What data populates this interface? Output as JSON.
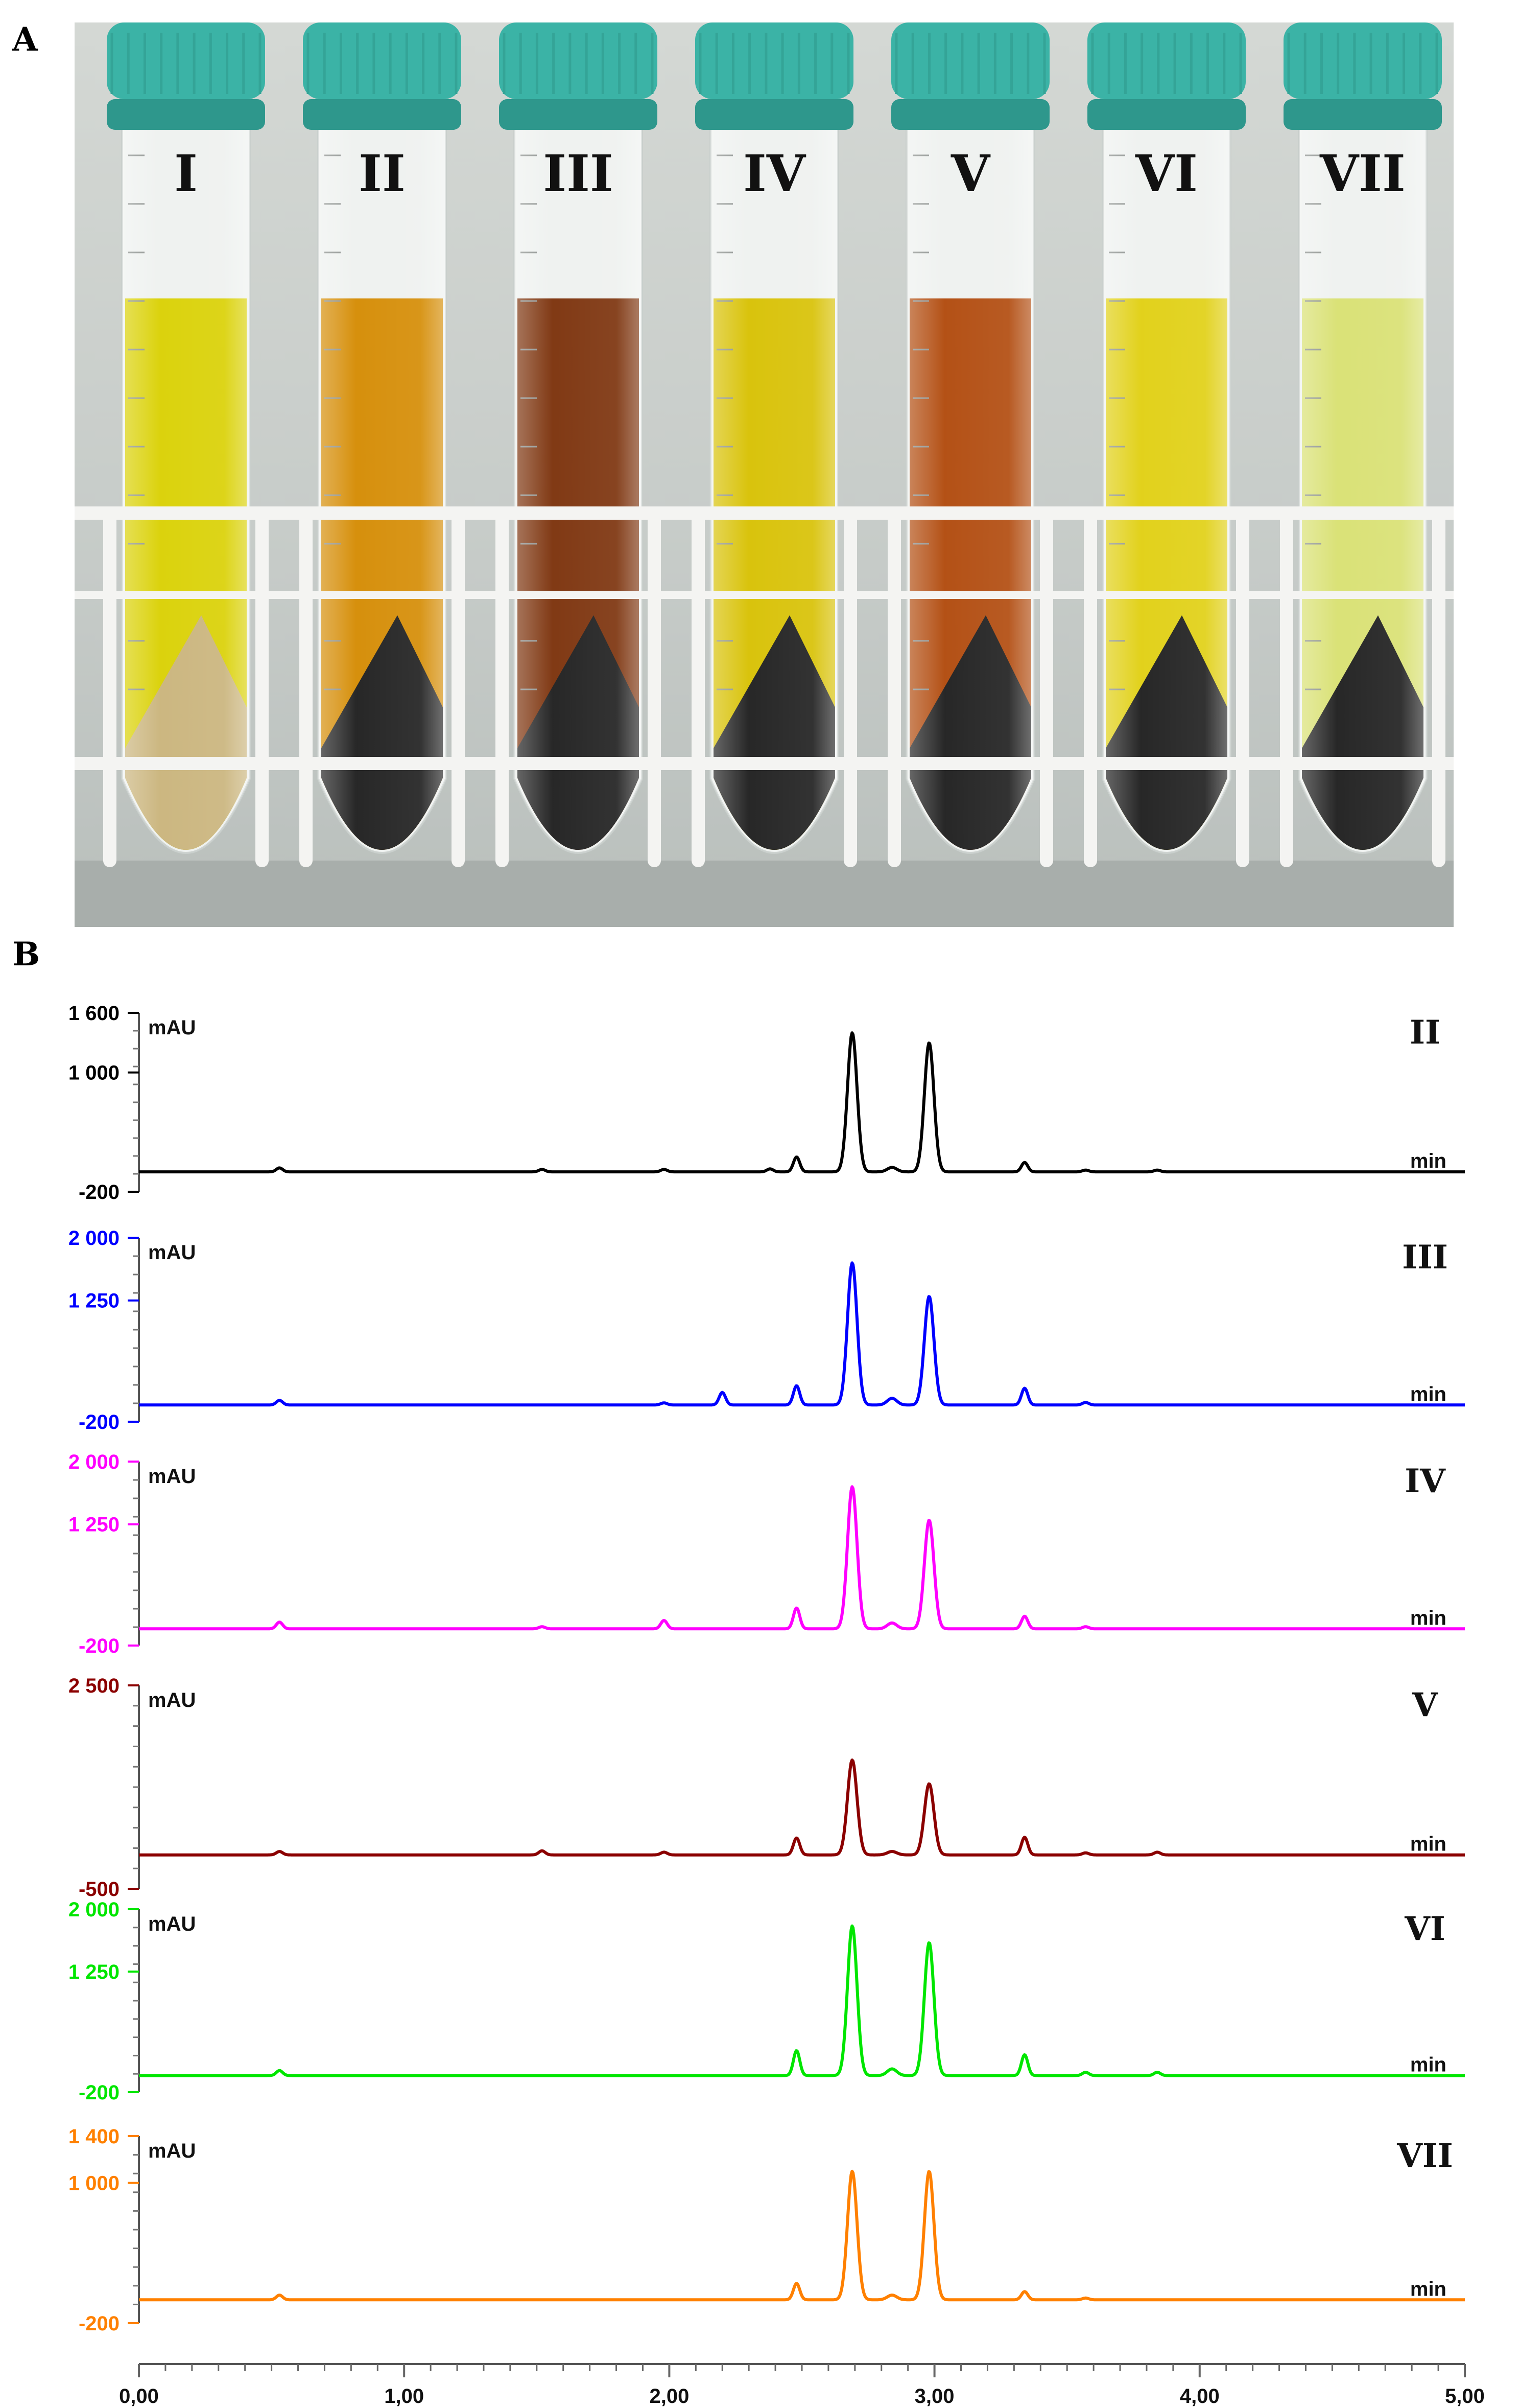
{
  "panel_a": {
    "label": "A",
    "tubes": [
      {
        "label": "I",
        "liquid_color": "#d9d000",
        "pellet": "sand"
      },
      {
        "label": "II",
        "liquid_color": "#d48a00",
        "pellet": "black"
      },
      {
        "label": "III",
        "liquid_color": "#7a2f08",
        "pellet": "black"
      },
      {
        "label": "IV",
        "liquid_color": "#d7c000",
        "pellet": "black"
      },
      {
        "label": "V",
        "liquid_color": "#b0480a",
        "pellet": "black"
      },
      {
        "label": "VI",
        "liquid_color": "#e0cf10",
        "pellet": "black"
      },
      {
        "label": "VII",
        "liquid_color": "#d8e070",
        "pellet": "black"
      }
    ],
    "cap_color": "#3bb3a6"
  },
  "panel_b": {
    "label": "B"
  },
  "chart_data": {
    "type": "line",
    "x_axis": {
      "range": [
        0,
        5
      ],
      "ticks": [
        0,
        1,
        2,
        3,
        4,
        5
      ],
      "tick_labels": [
        "0,00",
        "1,00",
        "2,00",
        "3,00",
        "4,00",
        "5,00"
      ],
      "unit_label": "min"
    },
    "y_unit": "mAU",
    "series": [
      {
        "name": "II",
        "color": "#000000",
        "ylim": [
          -200,
          1600
        ],
        "y_ticks": [
          -200,
          1000,
          1600
        ],
        "y_tick_labels": [
          "-200",
          "1 000",
          "1 600"
        ],
        "baseline": 0,
        "peaks": [
          [
            0.53,
            40
          ],
          [
            1.52,
            25
          ],
          [
            1.98,
            25
          ],
          [
            2.38,
            30
          ],
          [
            2.48,
            150
          ],
          [
            2.69,
            1400
          ],
          [
            2.84,
            45
          ],
          [
            2.98,
            1300
          ],
          [
            3.34,
            95
          ],
          [
            3.57,
            18
          ],
          [
            3.84,
            18
          ]
        ]
      },
      {
        "name": "III",
        "color": "#0000ff",
        "ylim": [
          -200,
          2000
        ],
        "y_ticks": [
          -200,
          1250,
          2000
        ],
        "y_tick_labels": [
          "-200",
          "1 250",
          "2 000"
        ],
        "baseline": 0,
        "peaks": [
          [
            0.53,
            55
          ],
          [
            1.98,
            25
          ],
          [
            2.2,
            150
          ],
          [
            2.48,
            230
          ],
          [
            2.69,
            1700
          ],
          [
            2.84,
            80
          ],
          [
            2.98,
            1300
          ],
          [
            3.34,
            200
          ],
          [
            3.57,
            30
          ]
        ]
      },
      {
        "name": "IV",
        "color": "#ff00ff",
        "ylim": [
          -200,
          2000
        ],
        "y_ticks": [
          -200,
          1250,
          2000
        ],
        "y_tick_labels": [
          "-200",
          "1 250",
          "2 000"
        ],
        "baseline": 0,
        "peaks": [
          [
            0.53,
            80
          ],
          [
            1.52,
            25
          ],
          [
            1.98,
            100
          ],
          [
            2.48,
            250
          ],
          [
            2.69,
            1700
          ],
          [
            2.84,
            70
          ],
          [
            2.98,
            1300
          ],
          [
            3.34,
            150
          ],
          [
            3.57,
            25
          ]
        ]
      },
      {
        "name": "V",
        "color": "#8b0000",
        "ylim": [
          -500,
          2500
        ],
        "y_ticks": [
          -500,
          2500
        ],
        "y_tick_labels": [
          "-500",
          "2 500"
        ],
        "baseline": 0,
        "peaks": [
          [
            0.53,
            50
          ],
          [
            1.52,
            60
          ],
          [
            1.98,
            40
          ],
          [
            2.48,
            250
          ],
          [
            2.69,
            1400
          ],
          [
            2.84,
            50
          ],
          [
            2.98,
            1050
          ],
          [
            3.34,
            260
          ],
          [
            3.57,
            30
          ],
          [
            3.84,
            40
          ]
        ]
      },
      {
        "name": "VI",
        "color": "#00e600",
        "ylim": [
          -200,
          2000
        ],
        "y_ticks": [
          -200,
          1250,
          2000
        ],
        "y_tick_labels": [
          "-200",
          "1 250",
          "2 000"
        ],
        "baseline": 0,
        "peaks": [
          [
            0.53,
            60
          ],
          [
            2.48,
            300
          ],
          [
            2.69,
            1800
          ],
          [
            2.84,
            80
          ],
          [
            2.98,
            1600
          ],
          [
            3.34,
            250
          ],
          [
            3.57,
            40
          ],
          [
            3.84,
            40
          ]
        ]
      },
      {
        "name": "VII",
        "color": "#ff8000",
        "ylim": [
          -200,
          1400
        ],
        "y_ticks": [
          -200,
          1000,
          1400
        ],
        "y_tick_labels": [
          "-200",
          "1 000",
          "1 400"
        ],
        "baseline": 0,
        "peaks": [
          [
            0.53,
            40
          ],
          [
            2.48,
            140
          ],
          [
            2.69,
            1100
          ],
          [
            2.84,
            40
          ],
          [
            2.98,
            1100
          ],
          [
            3.34,
            70
          ],
          [
            3.57,
            15
          ]
        ]
      }
    ]
  }
}
